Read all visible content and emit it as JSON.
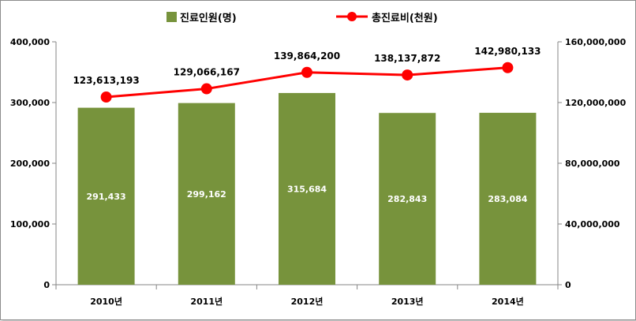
{
  "chart_data": {
    "type": "bar",
    "categories": [
      "2010년",
      "2011년",
      "2012년",
      "2013년",
      "2014년"
    ],
    "series": [
      {
        "name": "진료인원(명)",
        "type": "bar",
        "axis": "left",
        "color": "#77933c",
        "values": [
          291433,
          299162,
          315684,
          282843,
          283084
        ],
        "labels": [
          "291,433",
          "299,162",
          "315,684",
          "282,843",
          "283,084"
        ]
      },
      {
        "name": "총진료비(천원)",
        "type": "line",
        "axis": "right",
        "color": "#ff0000",
        "values": [
          123613193,
          129066167,
          139864200,
          138137872,
          142980133
        ],
        "labels": [
          "123,613,193",
          "129,066,167",
          "139,864,200",
          "138,137,872",
          "142,980,133"
        ]
      }
    ],
    "y_left": {
      "ylim": [
        0,
        400000
      ],
      "ticks": [
        0,
        100000,
        200000,
        300000,
        400000
      ],
      "tick_labels": [
        "0",
        "100,000",
        "200,000",
        "300,000",
        "400,000"
      ]
    },
    "y_right": {
      "ylim": [
        0,
        160000000
      ],
      "ticks": [
        0,
        40000000,
        80000000,
        120000000,
        160000000
      ],
      "tick_labels": [
        "0",
        "40,000,000",
        "80,000,000",
        "120,000,000",
        "160,000,000"
      ]
    },
    "title": "",
    "xlabel": "",
    "grid": false,
    "legend_position": "top-center"
  }
}
